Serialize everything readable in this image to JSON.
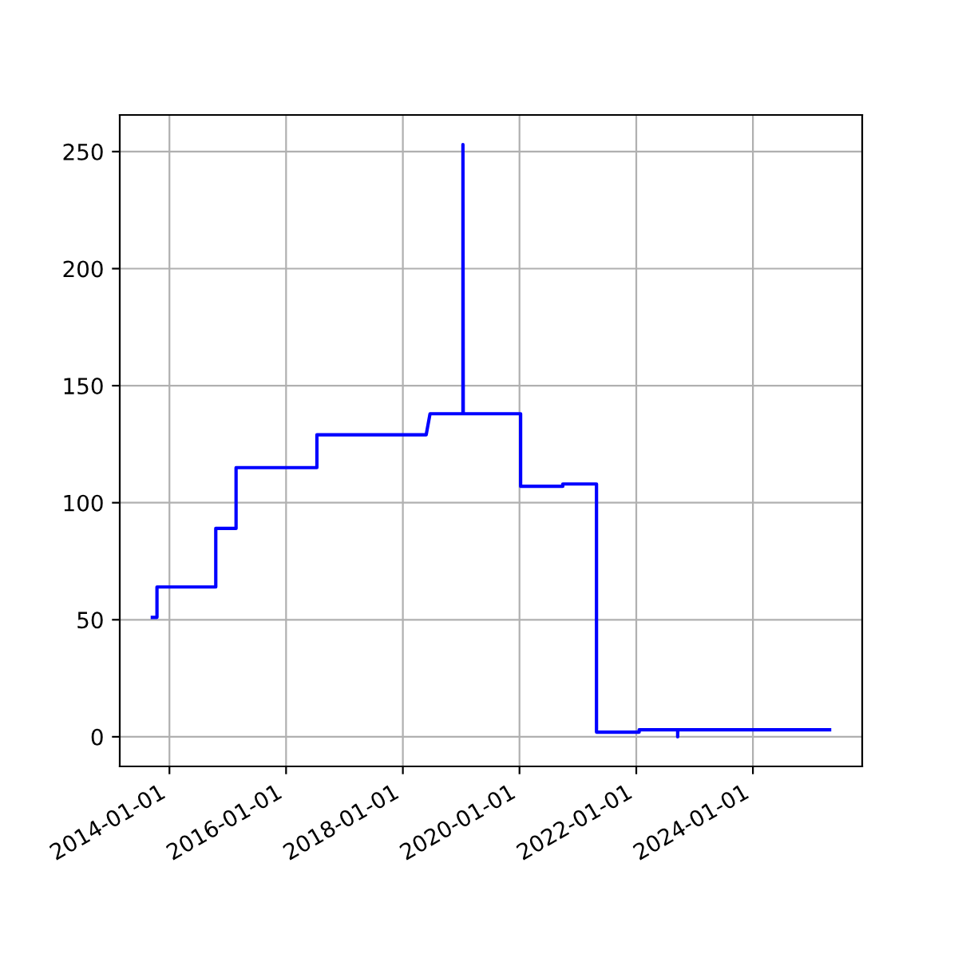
{
  "chart_data": {
    "type": "line",
    "x": [
      "2013-09-16",
      "2013-10-15",
      "2013-10-15",
      "2014-10-18",
      "2014-10-18",
      "2015-02-22",
      "2015-02-22",
      "2016-07-12",
      "2016-07-12",
      "2018-05-27",
      "2018-06-20",
      "2019-01-12",
      "2019-01-12",
      "2019-01-14",
      "2020-01-08",
      "2020-01-08",
      "2020-09-28",
      "2020-09-28",
      "2021-04-27",
      "2021-04-27",
      "2022-01-19",
      "2022-01-19",
      "2022-09-17",
      "2022-09-17",
      "2022-09-18",
      "2025-04-25"
    ],
    "series": [
      {
        "color": "#0000ff",
        "values": [
          51,
          51,
          64,
          64,
          89,
          89,
          115,
          115,
          129,
          129,
          138,
          138,
          253,
          138,
          138,
          107,
          107,
          108,
          108,
          2,
          2,
          3,
          3,
          0,
          3,
          3
        ]
      }
    ],
    "xlim": [
      "2013-02-24",
      "2025-11-15"
    ],
    "xticks": [
      "2014-01-01",
      "2016-01-01",
      "2018-01-01",
      "2020-01-01",
      "2022-01-01",
      "2024-01-01"
    ],
    "ylim": [
      -12.65,
      265.65
    ],
    "yticks": [
      0,
      50,
      100,
      150,
      200,
      250
    ],
    "grid": true
  }
}
